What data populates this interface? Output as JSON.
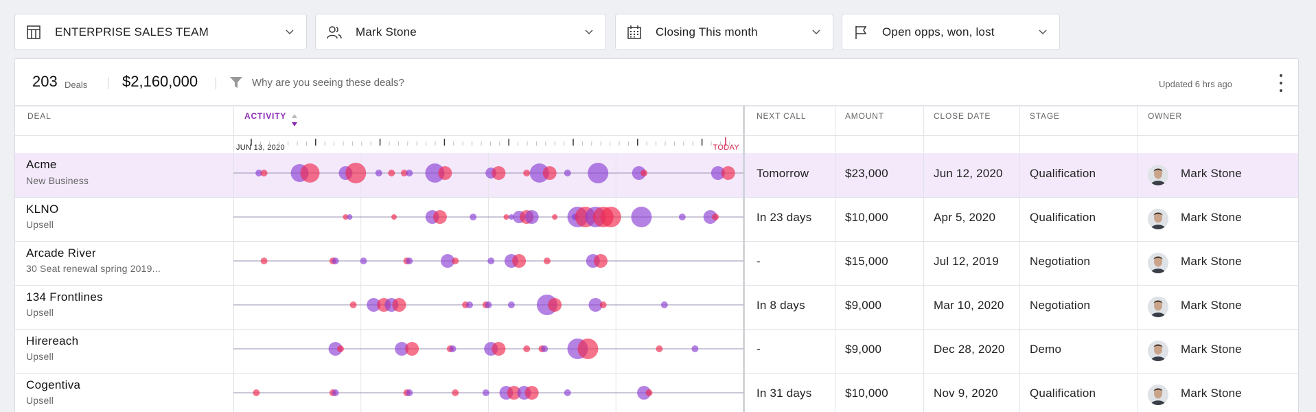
{
  "filters": [
    {
      "label": "ENTERPRISE SALES TEAM",
      "icon": "building-icon"
    },
    {
      "label": "Mark Stone",
      "icon": "users-icon"
    },
    {
      "label": "Closing This month",
      "icon": "calendar-icon"
    },
    {
      "label": "Open opps, won, lost",
      "icon": "flag-icon"
    }
  ],
  "summary": {
    "count": "203",
    "count_label": "Deals",
    "amount": "$2,160,000",
    "why_text": "Why are you seeing these deals?",
    "updated": "Updated 6 hrs ago"
  },
  "columns": {
    "deal": "DEAL",
    "activity": "ACTIVITY",
    "next_call": "NEXT CALL",
    "amount": "AMOUNT",
    "close_date": "CLOSE DATE",
    "stage": "STAGE",
    "owner": "OWNER"
  },
  "timeline": {
    "start_label": "JUN 13, 2020",
    "end_label": "TODAY"
  },
  "colors": {
    "purple": "#8a3fd4",
    "pink": "#f0294f",
    "accent": "#8a2bb5",
    "today": "#d61d4a",
    "selected_row": "#f3e9fb"
  },
  "rows": [
    {
      "name": "Acme",
      "type": "New Business",
      "next_call": "Tomorrow",
      "amount": "$23,000",
      "close_date": "Jun 12, 2020",
      "stage": "Qualification",
      "owner": "Mark Stone",
      "selected": true,
      "events": [
        [
          0.05,
          "p",
          5
        ],
        [
          0.06,
          "r",
          5
        ],
        [
          0.13,
          "p",
          13
        ],
        [
          0.15,
          "r",
          14
        ],
        [
          0.22,
          "p",
          10
        ],
        [
          0.24,
          "r",
          15
        ],
        [
          0.285,
          "p",
          5
        ],
        [
          0.31,
          "r",
          5
        ],
        [
          0.335,
          "r",
          5
        ],
        [
          0.345,
          "p",
          5
        ],
        [
          0.395,
          "p",
          14
        ],
        [
          0.415,
          "r",
          10
        ],
        [
          0.505,
          "p",
          8
        ],
        [
          0.52,
          "r",
          10
        ],
        [
          0.575,
          "r",
          5
        ],
        [
          0.6,
          "p",
          14
        ],
        [
          0.62,
          "r",
          10
        ],
        [
          0.655,
          "p",
          5
        ],
        [
          0.715,
          "p",
          15
        ],
        [
          0.795,
          "p",
          10
        ],
        [
          0.805,
          "r",
          5
        ],
        [
          0.95,
          "p",
          10
        ],
        [
          0.97,
          "r",
          10
        ]
      ]
    },
    {
      "name": "KLNO",
      "type": "Upsell",
      "next_call": "In 23 days",
      "amount": "$10,000",
      "close_date": "Apr 5, 2020",
      "stage": "Qualification",
      "owner": "Mark Stone",
      "selected": false,
      "events": [
        [
          0.22,
          "r",
          4
        ],
        [
          0.228,
          "p",
          4
        ],
        [
          0.315,
          "r",
          4
        ],
        [
          0.39,
          "p",
          10
        ],
        [
          0.405,
          "r",
          10
        ],
        [
          0.47,
          "p",
          5
        ],
        [
          0.535,
          "r",
          4
        ],
        [
          0.545,
          "p",
          4
        ],
        [
          0.56,
          "p",
          9
        ],
        [
          0.575,
          "r",
          10
        ],
        [
          0.585,
          "p",
          10
        ],
        [
          0.63,
          "r",
          4
        ],
        [
          0.67,
          "p",
          5
        ],
        [
          0.675,
          "p",
          15
        ],
        [
          0.69,
          "r",
          15
        ],
        [
          0.71,
          "p",
          15
        ],
        [
          0.725,
          "r",
          15
        ],
        [
          0.74,
          "r",
          15
        ],
        [
          0.8,
          "p",
          15
        ],
        [
          0.88,
          "p",
          5
        ],
        [
          0.935,
          "p",
          10
        ],
        [
          0.945,
          "r",
          5
        ]
      ]
    },
    {
      "name": "Arcade River",
      "type": "30 Seat renewal spring 2019...",
      "next_call": "-",
      "amount": "$15,000",
      "close_date": "Jul 12, 2019",
      "stage": "Negotiation",
      "owner": "Mark Stone",
      "selected": false,
      "events": [
        [
          0.06,
          "r",
          5
        ],
        [
          0.195,
          "r",
          5
        ],
        [
          0.2,
          "p",
          5
        ],
        [
          0.255,
          "p",
          5
        ],
        [
          0.34,
          "r",
          5
        ],
        [
          0.345,
          "p",
          5
        ],
        [
          0.42,
          "p",
          10
        ],
        [
          0.435,
          "r",
          5
        ],
        [
          0.505,
          "p",
          5
        ],
        [
          0.545,
          "p",
          10
        ],
        [
          0.56,
          "r",
          10
        ],
        [
          0.615,
          "r",
          5
        ],
        [
          0.705,
          "p",
          10
        ],
        [
          0.72,
          "r",
          10
        ]
      ]
    },
    {
      "name": "134 Frontlines",
      "type": "Upsell",
      "next_call": "In 8 days",
      "amount": "$9,000",
      "close_date": "Mar 10, 2020",
      "stage": "Negotiation",
      "owner": "Mark Stone",
      "selected": false,
      "events": [
        [
          0.235,
          "r",
          5
        ],
        [
          0.275,
          "p",
          10
        ],
        [
          0.295,
          "r",
          10
        ],
        [
          0.31,
          "p",
          10
        ],
        [
          0.325,
          "r",
          10
        ],
        [
          0.455,
          "r",
          5
        ],
        [
          0.463,
          "p",
          5
        ],
        [
          0.495,
          "r",
          5
        ],
        [
          0.5,
          "p",
          5
        ],
        [
          0.545,
          "p",
          5
        ],
        [
          0.615,
          "p",
          15
        ],
        [
          0.63,
          "r",
          10
        ],
        [
          0.71,
          "p",
          10
        ],
        [
          0.725,
          "r",
          5
        ],
        [
          0.845,
          "p",
          5
        ]
      ]
    },
    {
      "name": "Hirereach",
      "type": "Upsell",
      "next_call": "-",
      "amount": "$9,000",
      "close_date": "Dec 28, 2020",
      "stage": "Demo",
      "owner": "Mark Stone",
      "selected": false,
      "events": [
        [
          0.2,
          "p",
          10
        ],
        [
          0.21,
          "r",
          5
        ],
        [
          0.33,
          "p",
          10
        ],
        [
          0.35,
          "r",
          10
        ],
        [
          0.425,
          "r",
          5
        ],
        [
          0.43,
          "p",
          5
        ],
        [
          0.505,
          "p",
          10
        ],
        [
          0.52,
          "r",
          10
        ],
        [
          0.575,
          "r",
          5
        ],
        [
          0.605,
          "r",
          5
        ],
        [
          0.61,
          "p",
          5
        ],
        [
          0.675,
          "p",
          15
        ],
        [
          0.695,
          "r",
          15
        ],
        [
          0.835,
          "r",
          5
        ],
        [
          0.905,
          "p",
          5
        ]
      ]
    },
    {
      "name": "Cogentiva",
      "type": "Upsell",
      "next_call": "In 31 days",
      "amount": "$10,000",
      "close_date": "Nov 9, 2020",
      "stage": "Qualification",
      "owner": "Mark Stone",
      "selected": false,
      "events": [
        [
          0.045,
          "r",
          5
        ],
        [
          0.195,
          "r",
          5
        ],
        [
          0.2,
          "p",
          5
        ],
        [
          0.34,
          "r",
          5
        ],
        [
          0.345,
          "p",
          5
        ],
        [
          0.435,
          "r",
          5
        ],
        [
          0.495,
          "p",
          5
        ],
        [
          0.535,
          "p",
          10
        ],
        [
          0.55,
          "r",
          10
        ],
        [
          0.57,
          "p",
          10
        ],
        [
          0.585,
          "r",
          10
        ],
        [
          0.655,
          "p",
          5
        ],
        [
          0.805,
          "p",
          10
        ],
        [
          0.815,
          "r",
          5
        ]
      ]
    }
  ]
}
